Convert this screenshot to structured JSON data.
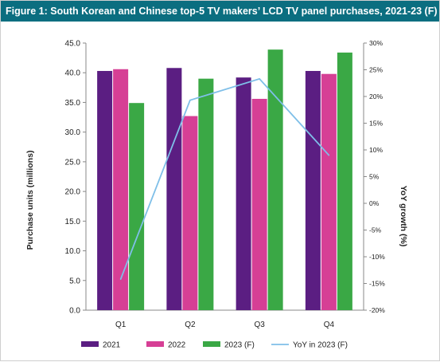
{
  "chart_data": {
    "type": "bar",
    "title": "Figure 1: South Korean and Chinese top-5 TV makers’ LCD TV panel purchases, 2021-23 (F)",
    "categories": [
      "Q1",
      "Q2",
      "Q3",
      "Q4"
    ],
    "series": [
      {
        "name": "2021",
        "type": "bar",
        "axis": "left",
        "color": "#5b1e82",
        "values": [
          40.3,
          40.8,
          39.2,
          40.3
        ]
      },
      {
        "name": "2022",
        "type": "bar",
        "axis": "left",
        "color": "#d63f95",
        "values": [
          40.6,
          32.7,
          35.6,
          39.8
        ]
      },
      {
        "name": "2023 (F)",
        "type": "bar",
        "axis": "left",
        "color": "#3aa845",
        "values": [
          34.9,
          39.0,
          43.9,
          43.4
        ]
      },
      {
        "name": "YoY in 2023 (F)",
        "type": "line",
        "axis": "right",
        "color": "#7fbfe8",
        "values": [
          -14.2,
          19.3,
          23.3,
          9.0
        ]
      }
    ],
    "ylabel": "Purchase units (millions)",
    "y2label": "YoY growth (%)",
    "ylim": [
      0,
      45
    ],
    "y2lim": [
      -20,
      30
    ],
    "yticks": [
      "0.0",
      "5.0",
      "10.0",
      "15.0",
      "20.0",
      "25.0",
      "30.0",
      "35.0",
      "40.0",
      "45.0"
    ],
    "y2ticks": [
      "-20%",
      "-15%",
      "-10%",
      "-5%",
      "0%",
      "5%",
      "10%",
      "15%",
      "20%",
      "25%",
      "30%"
    ],
    "grid": false,
    "legend_position": "bottom"
  }
}
